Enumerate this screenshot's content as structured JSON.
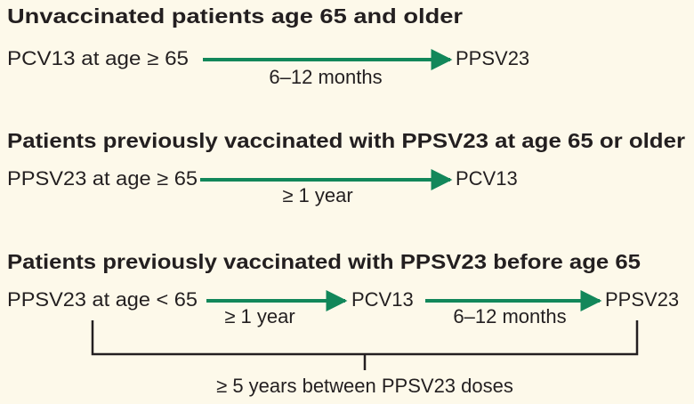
{
  "sections": [
    {
      "title": "Unvaccinated patients age 65 and older",
      "steps": [
        "PCV13 at age ≥ 65",
        "PPSV23"
      ],
      "intervals": [
        "6–12 months"
      ]
    },
    {
      "title": "Patients previously vaccinated with PPSV23 at age 65 or older",
      "steps": [
        "PPSV23 at age ≥ 65",
        "PCV13"
      ],
      "intervals": [
        "≥ 1 year"
      ]
    },
    {
      "title": "Patients previously vaccinated with PPSV23 before age 65",
      "steps": [
        "PPSV23 at age < 65",
        "PCV13",
        "PPSV23"
      ],
      "intervals": [
        "≥ 1 year",
        "6–12 months"
      ]
    }
  ],
  "bracket_label": "≥ 5 years between PPSV23 doses"
}
